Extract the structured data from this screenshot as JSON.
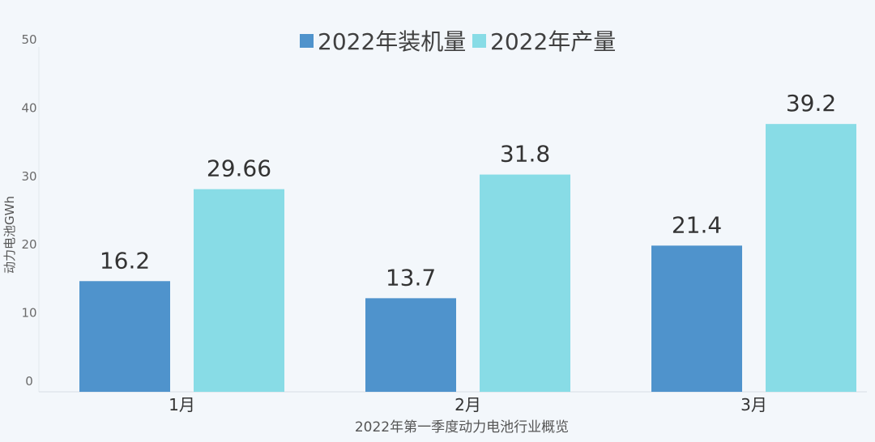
{
  "chart_data": {
    "type": "bar",
    "categories": [
      "1月",
      "2月",
      "3月"
    ],
    "series": [
      {
        "name": "2022年装机量",
        "values": [
          16.2,
          13.7,
          21.4
        ],
        "color": "#4f93cc"
      },
      {
        "name": "2022年产量",
        "values": [
          29.66,
          31.8,
          39.2
        ],
        "color": "#88dce6"
      }
    ],
    "value_labels": [
      [
        "16.2",
        "13.7",
        "21.4"
      ],
      [
        "29.66",
        "31.8",
        "39.2"
      ]
    ],
    "ylabel": "动力电池GWh",
    "xlabel": "2022年第一季度动力电池行业概览",
    "ylim": [
      0,
      50
    ],
    "yticks": [
      0,
      10,
      20,
      30,
      40,
      50
    ],
    "grid": false,
    "legend_position": "top-center"
  }
}
